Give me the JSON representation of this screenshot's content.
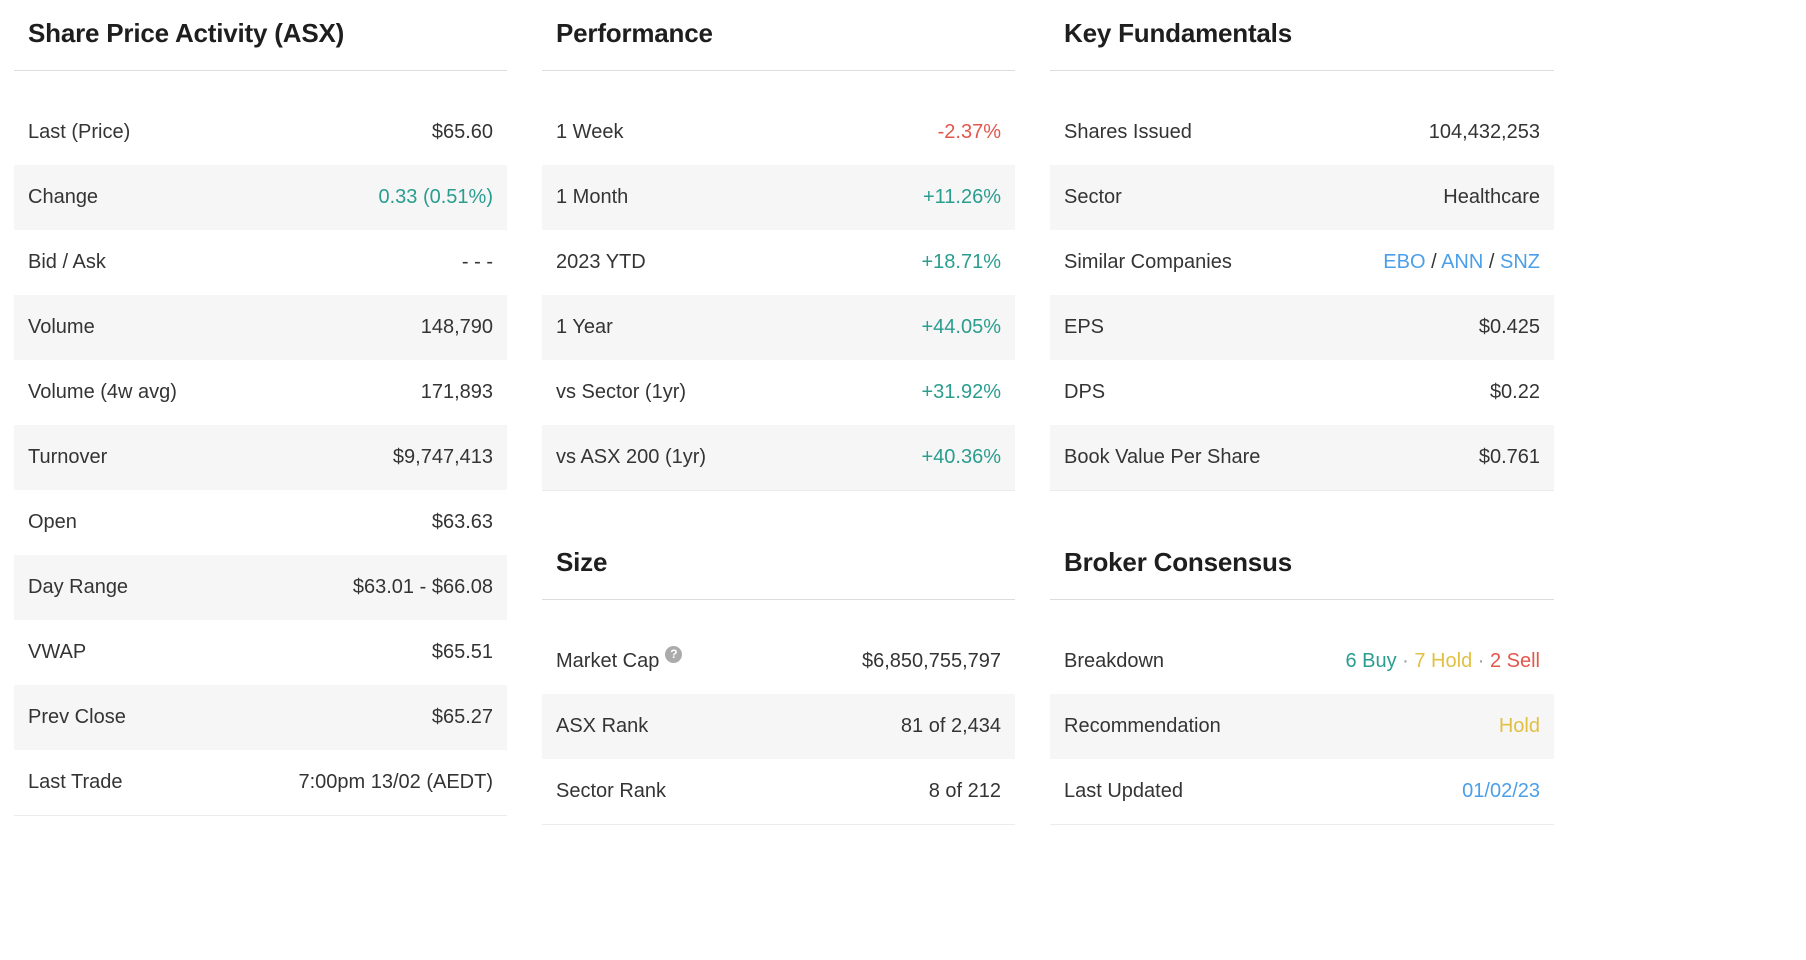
{
  "colors": {
    "positive": "#2a9d8f",
    "negative": "#e2574c",
    "link": "#4b9fea",
    "hold": "#e2c043",
    "row_alt": "#f6f6f6"
  },
  "icons": {
    "help": "?"
  },
  "share_price": {
    "title": "Share Price Activity (ASX)",
    "rows": [
      {
        "label": "Last (Price)",
        "value": "$65.60"
      },
      {
        "label": "Change",
        "value": "0.33 (0.51%)",
        "style": "pos"
      },
      {
        "label": "Bid / Ask",
        "value": "- - -"
      },
      {
        "label": "Volume",
        "value": "148,790"
      },
      {
        "label": "Volume (4w avg)",
        "value": "171,893"
      },
      {
        "label": "Turnover",
        "value": "$9,747,413"
      },
      {
        "label": "Open",
        "value": "$63.63"
      },
      {
        "label": "Day Range",
        "value": "$63.01 - $66.08"
      },
      {
        "label": "VWAP",
        "value": "$65.51"
      },
      {
        "label": "Prev Close",
        "value": "$65.27"
      },
      {
        "label": "Last Trade",
        "value": "7:00pm 13/02 (AEDT)"
      }
    ]
  },
  "performance": {
    "title": "Performance",
    "rows": [
      {
        "label": "1 Week",
        "value": "-2.37%",
        "style": "neg"
      },
      {
        "label": "1 Month",
        "value": "+11.26%",
        "style": "pos"
      },
      {
        "label": "2023 YTD",
        "value": "+18.71%",
        "style": "pos"
      },
      {
        "label": "1 Year",
        "value": "+44.05%",
        "style": "pos"
      },
      {
        "label": "vs Sector (1yr)",
        "value": "+31.92%",
        "style": "pos"
      },
      {
        "label": "vs ASX 200 (1yr)",
        "value": "+40.36%",
        "style": "pos"
      }
    ]
  },
  "size": {
    "title": "Size",
    "rows": [
      {
        "label": "Market Cap",
        "help": true,
        "value": "$6,850,755,797"
      },
      {
        "label": "ASX Rank",
        "value": "81 of 2,434"
      },
      {
        "label": "Sector Rank",
        "value": "8 of 212"
      }
    ]
  },
  "fundamentals": {
    "title": "Key Fundamentals",
    "rows": [
      {
        "label": "Shares Issued",
        "value": "104,432,253"
      },
      {
        "label": "Sector",
        "value": "Healthcare"
      },
      {
        "label": "Similar Companies",
        "value": [
          {
            "text": "EBO",
            "style": "link",
            "name": "similar-company-link-ebo"
          },
          {
            "text": " / ",
            "style": "plain"
          },
          {
            "text": "ANN",
            "style": "link",
            "name": "similar-company-link-ann"
          },
          {
            "text": " / ",
            "style": "plain"
          },
          {
            "text": "SNZ",
            "style": "link",
            "name": "similar-company-link-snz"
          }
        ]
      },
      {
        "label": "EPS",
        "value": "$0.425"
      },
      {
        "label": "DPS",
        "value": "$0.22"
      },
      {
        "label": "Book Value Per Share",
        "value": "$0.761"
      }
    ]
  },
  "broker": {
    "title": "Broker Consensus",
    "rows": [
      {
        "label": "Breakdown",
        "value": [
          {
            "text": "6 Buy",
            "style": "pos",
            "name": "buy-count"
          },
          {
            "text": " · ",
            "style": "muted"
          },
          {
            "text": "7 Hold",
            "style": "hold",
            "name": "hold-count"
          },
          {
            "text": " · ",
            "style": "muted"
          },
          {
            "text": "2 Sell",
            "style": "sell",
            "name": "sell-count"
          }
        ]
      },
      {
        "label": "Recommendation",
        "value": "Hold",
        "style": "hold"
      },
      {
        "label": "Last Updated",
        "value": "01/02/23",
        "style": "link",
        "value_name": "last-updated-link"
      }
    ]
  }
}
